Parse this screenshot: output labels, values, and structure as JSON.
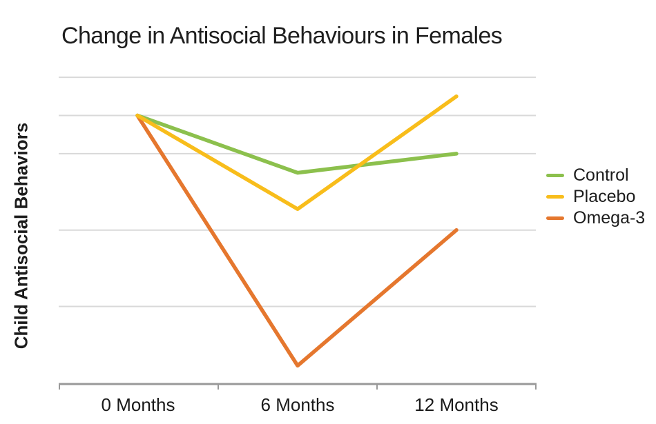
{
  "chart_data": {
    "type": "line",
    "title": "Change in Antisocial Behaviours in Females",
    "xlabel": "",
    "ylabel": "Child Antisocial Behaviors",
    "categories": [
      "0 Months",
      "6 Months",
      "12 Months"
    ],
    "series": [
      {
        "name": "Control",
        "color": "#8CC04D",
        "values": [
          5,
          3.5,
          4
        ]
      },
      {
        "name": "Placebo",
        "color": "#F8BD1B",
        "values": [
          5,
          2.55,
          5.5
        ]
      },
      {
        "name": "Omega-3",
        "color": "#E5772E",
        "values": [
          5,
          -1.55,
          2
        ]
      }
    ],
    "y_axis": {
      "tick_labels_visible": false,
      "units": "arbitrary (no numeric labels shown)",
      "gridline_values": [
        0,
        2,
        4,
        5,
        6
      ],
      "ylim": [
        -2.05,
        6.3
      ]
    },
    "legend_position": "right",
    "grid": true,
    "colors": {
      "gridline": "#D9D9D9",
      "axis": "#999999",
      "text": "#1c1c1c"
    }
  }
}
